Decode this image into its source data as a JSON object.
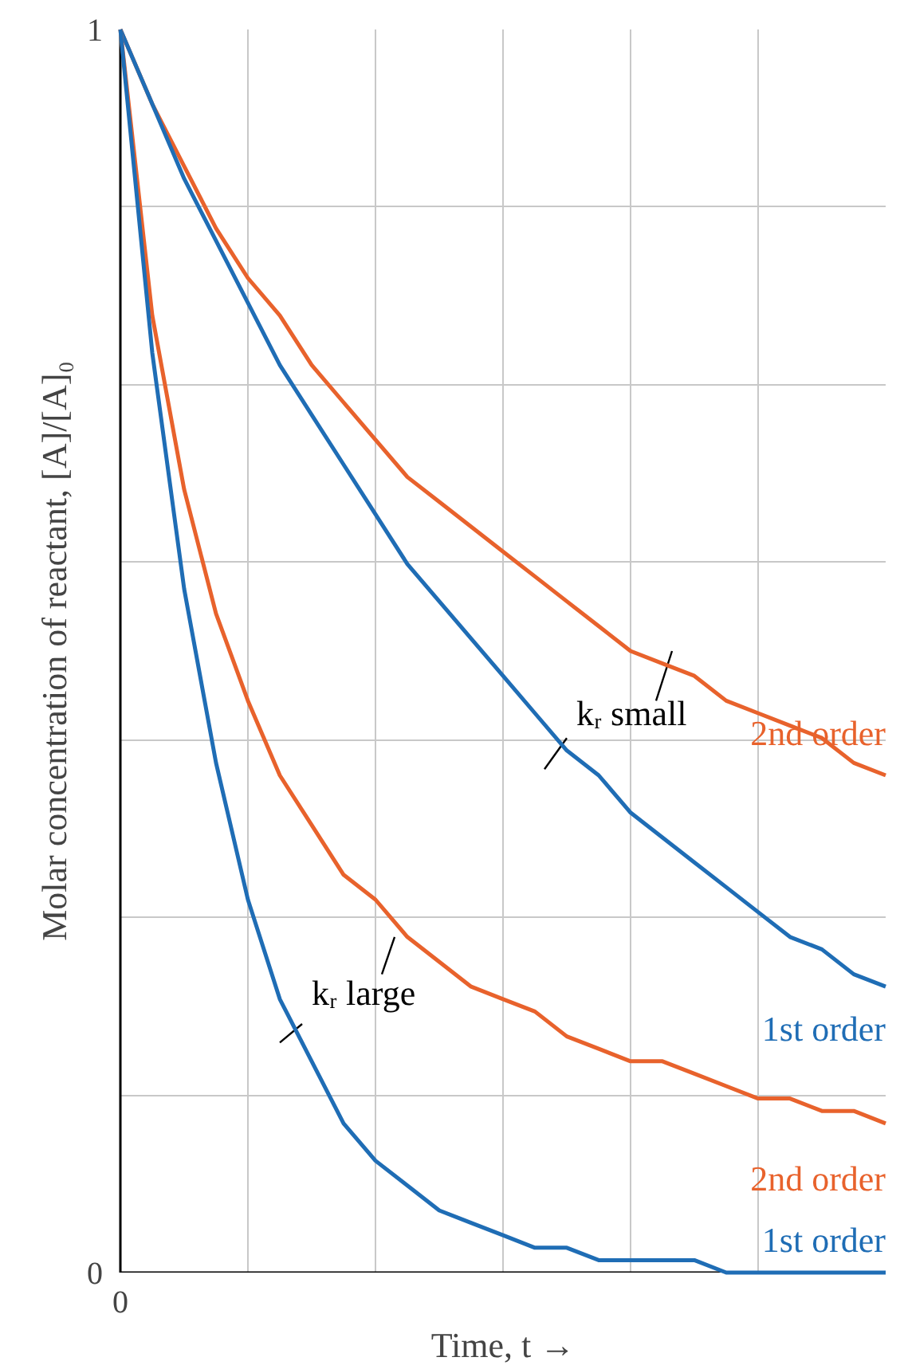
{
  "chart_data": {
    "type": "line",
    "xlabel": "Time, t →",
    "ylabel": "Molar concentration of reactant, [A]/[A]₀",
    "categories": [
      "0",
      null,
      null,
      null,
      null,
      null,
      null,
      null,
      null,
      null,
      null,
      null,
      null,
      null,
      null,
      null,
      null,
      null,
      null,
      null,
      null,
      null,
      null,
      null,
      null
    ],
    "series": [
      {
        "name": "2nd order",
        "color": "#e8622c",
        "values": [
          1,
          0.94,
          0.89,
          0.84,
          0.8,
          0.77,
          0.73,
          0.7,
          0.67,
          0.64,
          0.62,
          0.6,
          0.58,
          0.56,
          0.54,
          0.52,
          0.5,
          0.49,
          0.48,
          0.46,
          0.45,
          0.44,
          0.43,
          0.41,
          0.4
        ]
      },
      {
        "name": "1st order",
        "color": "#1f6db5",
        "values": [
          1,
          0.94,
          0.88,
          0.83,
          0.78,
          0.73,
          0.69,
          0.65,
          0.61,
          0.57,
          0.54,
          0.51,
          0.48,
          0.45,
          0.42,
          0.4,
          0.37,
          0.35,
          0.33,
          0.31,
          0.29,
          0.27,
          0.26,
          0.24,
          0.23
        ]
      },
      {
        "name": "2nd order",
        "color": "#e8622c",
        "values": [
          1,
          0.77,
          0.63,
          0.53,
          0.46,
          0.4,
          0.36,
          0.32,
          0.3,
          0.27,
          0.25,
          0.23,
          0.22,
          0.21,
          0.19,
          0.18,
          0.17,
          0.17,
          0.16,
          0.15,
          0.14,
          0.14,
          0.13,
          0.13,
          0.12
        ]
      },
      {
        "name": "1st order",
        "color": "#1f6db5",
        "values": [
          1,
          0.74,
          0.55,
          0.41,
          0.3,
          0.22,
          0.17,
          0.12,
          0.09,
          0.07,
          0.05,
          0.04,
          0.03,
          0.02,
          0.02,
          0.01,
          0.01,
          0.01,
          0.01,
          0,
          0,
          0,
          0,
          0,
          0
        ]
      }
    ],
    "annotations": [
      "kᵣ small",
      "kᵣ large"
    ],
    "ylim": [
      0,
      1
    ],
    "yticks": [
      0,
      {
        "value": 0.1429,
        "label": null
      },
      {
        "value": 0.2857,
        "label": null
      },
      {
        "value": 0.4286,
        "label": null
      },
      {
        "value": 0.5714,
        "label": null
      },
      {
        "value": 0.7143,
        "label": null
      },
      {
        "value": 0.8571,
        "label": null
      },
      1
    ],
    "grid": true,
    "marker": "none",
    "line_style": "solid"
  }
}
